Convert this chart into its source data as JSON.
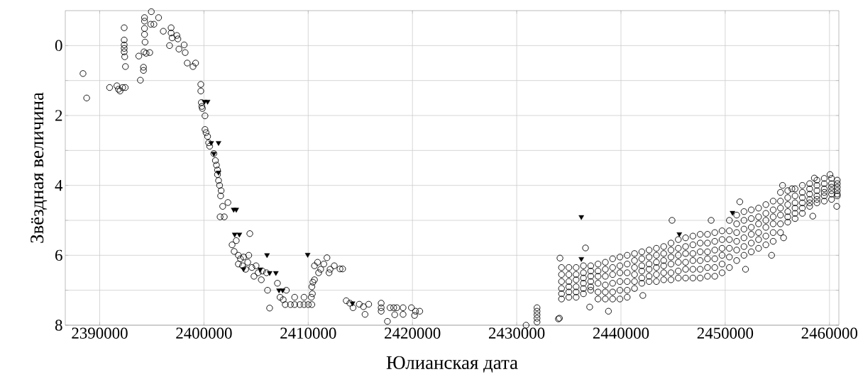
{
  "chart_data": {
    "type": "scatter",
    "xlabel": "Юлианская дата",
    "ylabel": "Звёздная величина",
    "xlim": [
      2386700,
      2460900
    ],
    "ylim": [
      8,
      -1
    ],
    "xticks": [
      2390000,
      2400000,
      2410000,
      2420000,
      2430000,
      2440000,
      2450000,
      2460000
    ],
    "yticks": [
      0,
      {
        "value": 1,
        "label": null
      },
      2,
      {
        "value": 3,
        "label": null
      },
      4,
      {
        "value": 5,
        "label": null
      },
      6,
      {
        "value": 7,
        "label": null
      },
      8
    ],
    "grid": true,
    "series": [
      {
        "marker": "circle",
        "color": "#000000",
        "x": [
          2388400,
          2388750,
          2390950,
          2391650,
          2391800,
          2391950,
          2392200,
          2392450,
          2392350,
          2392350,
          2392350,
          2392350,
          2392350,
          2392400,
          2392470,
          2393900,
          2393750,
          2394200,
          2394200,
          2394300,
          2394300,
          2394300,
          2394300,
          2394350,
          2394250,
          2394450,
          2394800,
          2394950,
          2394900,
          2395200,
          2395650,
          2396100,
          2396700,
          2396850,
          2396850,
          2396950,
          2397400,
          2397500,
          2397600,
          2398100,
          2398200,
          2398400,
          2398950,
          2399200,
          2399700,
          2399700,
          2399750,
          2399800,
          2399850,
          2400100,
          2400100,
          2400200,
          2400350,
          2400450,
          2400550,
          2400950,
          2401100,
          2401200,
          2401300,
          2401300,
          2401400,
          2401500,
          2401650,
          2401600,
          2401550,
          2401950,
          2401800,
          2402300,
          2403100,
          2402700,
          2402900,
          2403300,
          2403500,
          2403800,
          2404300,
          2404200,
          2403300,
          2403700,
          2404400,
          2404000,
          2404600,
          2405000,
          2405200,
          2405600,
          2406000,
          2404800,
          2405500,
          2406100,
          2406300,
          2407050,
          2407300,
          2407600,
          2407900,
          2407800,
          2408300,
          2408700,
          2409200,
          2409600,
          2410000,
          2410350,
          2408700,
          2409600,
          2410300,
          2410350,
          2410450,
          2410600,
          2410400,
          2410600,
          2410900,
          2411200,
          2411500,
          2411800,
          2412100,
          2412500,
          2411000,
          2412000,
          2413050,
          2413300,
          2413650,
          2414000,
          2414900,
          2415300,
          2415800,
          2415450,
          2414300,
          2417000,
          2417000,
          2417000,
          2417600,
          2417850,
          2418200,
          2418500,
          2418300,
          2419100,
          2419100,
          2419900,
          2420300,
          2420700,
          2420200,
          2430900,
          2431950,
          2431950,
          2431950,
          2431950,
          2431950,
          2434150,
          2434100,
          2434000,
          2438800,
          2437000,
          2442100,
          2436600,
          2444900,
          2448650,
          2451400,
          2451950,
          2454450,
          2455600,
          2458400,
          2460700,
          2455500,
          2456400,
          2458550,
          2460050,
          2434300,
          2434300,
          2434300,
          2434300,
          2434300,
          2434300,
          2435000,
          2435000,
          2435000,
          2435000,
          2435000,
          2435000,
          2435700,
          2435700,
          2435700,
          2435700,
          2435700,
          2435700,
          2436400,
          2436400,
          2436400,
          2436400,
          2436400,
          2436400,
          2437100,
          2437100,
          2437100,
          2437100,
          2437100,
          2437100,
          2437800,
          2437800,
          2437800,
          2437800,
          2437800,
          2437800,
          2438500,
          2438500,
          2438500,
          2438500,
          2438500,
          2438500,
          2439200,
          2439200,
          2439200,
          2439200,
          2439200,
          2439200,
          2439900,
          2439900,
          2439900,
          2439900,
          2439900,
          2439900,
          2440600,
          2440600,
          2440600,
          2440600,
          2440600,
          2440600,
          2441300,
          2441300,
          2441300,
          2441300,
          2441300,
          2441300,
          2442000,
          2442000,
          2442000,
          2442000,
          2442000,
          2442000,
          2442700,
          2442700,
          2442700,
          2442700,
          2442700,
          2442700,
          2443400,
          2443400,
          2443400,
          2443400,
          2443400,
          2443400,
          2444100,
          2444100,
          2444100,
          2444100,
          2444100,
          2444100,
          2444800,
          2444800,
          2444800,
          2444800,
          2444800,
          2444800,
          2445500,
          2445500,
          2445500,
          2445500,
          2445500,
          2445500,
          2446200,
          2446200,
          2446200,
          2446200,
          2446200,
          2446200,
          2446900,
          2446900,
          2446900,
          2446900,
          2446900,
          2446900,
          2447600,
          2447600,
          2447600,
          2447600,
          2447600,
          2447600,
          2448300,
          2448300,
          2448300,
          2448300,
          2448300,
          2448300,
          2449000,
          2449000,
          2449000,
          2449000,
          2449000,
          2449000,
          2449700,
          2449700,
          2449700,
          2449700,
          2449700,
          2449700,
          2450400,
          2450400,
          2450400,
          2450400,
          2450400,
          2450400,
          2451100,
          2451100,
          2451100,
          2451100,
          2451100,
          2451100,
          2451800,
          2451800,
          2451800,
          2451800,
          2451800,
          2451800,
          2452500,
          2452500,
          2452500,
          2452500,
          2452500,
          2452500,
          2453200,
          2453200,
          2453200,
          2453200,
          2453200,
          2453200,
          2453900,
          2453900,
          2453900,
          2453900,
          2453900,
          2453900,
          2454600,
          2454600,
          2454600,
          2454600,
          2454600,
          2454600,
          2455300,
          2455300,
          2455300,
          2455300,
          2455300,
          2455300,
          2456000,
          2456000,
          2456000,
          2456000,
          2456000,
          2456000,
          2456700,
          2456700,
          2456700,
          2456700,
          2456700,
          2456700,
          2457400,
          2457400,
          2457400,
          2457400,
          2457400,
          2457400,
          2458100,
          2458100,
          2458100,
          2458100,
          2458100,
          2458100,
          2458800,
          2458800,
          2458800,
          2458800,
          2458800,
          2458800,
          2459500,
          2459500,
          2459500,
          2459500,
          2459500,
          2459500,
          2460200,
          2460200,
          2460200,
          2460200,
          2460200,
          2460200,
          2460750,
          2460750,
          2460750,
          2460750,
          2460750,
          2460750
        ],
        "values": [
          0.8,
          1.5,
          1.2,
          1.15,
          1.25,
          1.3,
          1.2,
          1.2,
          -0.51,
          -0.16,
          -0.02,
          0.08,
          0.18,
          0.32,
          0.6,
          0.99,
          0.3,
          0.62,
          0.71,
          -0.8,
          -0.7,
          -0.49,
          -0.32,
          -0.1,
          0.18,
          0.22,
          0.2,
          -0.97,
          -0.61,
          -0.61,
          -0.8,
          -0.41,
          0.0,
          -0.51,
          -0.36,
          -0.22,
          -0.29,
          -0.19,
          0.1,
          -0.02,
          0.2,
          0.5,
          0.6,
          0.5,
          1.11,
          1.3,
          1.63,
          1.74,
          1.8,
          2.01,
          2.4,
          2.49,
          2.6,
          2.78,
          2.88,
          3.09,
          3.29,
          3.42,
          3.56,
          3.69,
          3.86,
          4.0,
          4.15,
          4.3,
          4.9,
          4.9,
          4.6,
          4.49,
          5.58,
          5.7,
          5.89,
          6.0,
          6.1,
          6.05,
          6.0,
          6.2,
          6.25,
          6.3,
          5.38,
          6.4,
          6.35,
          6.3,
          6.5,
          6.45,
          6.5,
          6.6,
          6.7,
          7.0,
          7.51,
          6.8,
          7.2,
          7.27,
          7.0,
          7.41,
          7.41,
          7.41,
          7.41,
          7.41,
          7.41,
          7.41,
          7.2,
          7.2,
          7.2,
          6.9,
          6.77,
          6.7,
          7.1,
          6.3,
          6.2,
          6.4,
          6.25,
          6.07,
          6.4,
          6.3,
          6.5,
          6.5,
          6.39,
          6.39,
          7.3,
          7.37,
          7.4,
          7.47,
          7.4,
          7.69,
          7.5,
          7.37,
          7.5,
          7.6,
          7.89,
          7.5,
          7.5,
          7.5,
          7.7,
          7.5,
          7.69,
          7.5,
          7.6,
          7.6,
          7.72,
          8.0,
          7.5,
          7.6,
          7.7,
          7.8,
          7.91,
          6.08,
          7.8,
          7.82,
          7.6,
          7.48,
          7.15,
          5.79,
          5.0,
          5.0,
          4.47,
          6.4,
          6.0,
          5.5,
          4.88,
          4.6,
          4.0,
          4.1,
          3.79,
          3.69,
          6.35,
          6.55,
          6.75,
          6.95,
          7.1,
          7.25,
          6.35,
          6.55,
          6.75,
          6.9,
          7.05,
          7.2,
          6.35,
          6.55,
          6.7,
          6.9,
          7.05,
          7.2,
          6.3,
          6.5,
          6.65,
          6.8,
          6.95,
          7.1,
          6.3,
          6.45,
          6.6,
          6.75,
          6.9,
          7.0,
          6.25,
          6.45,
          6.6,
          6.8,
          7.05,
          7.25,
          6.2,
          6.4,
          6.6,
          6.85,
          7.05,
          7.25,
          6.1,
          6.35,
          6.55,
          6.8,
          7.05,
          7.25,
          6.05,
          6.3,
          6.5,
          6.75,
          7.0,
          7.25,
          6.0,
          6.25,
          6.5,
          6.75,
          7.0,
          7.2,
          5.95,
          6.15,
          6.35,
          6.55,
          6.75,
          6.95,
          5.9,
          6.1,
          6.3,
          6.45,
          6.65,
          6.8,
          5.85,
          6.05,
          6.25,
          6.4,
          6.6,
          6.75,
          5.8,
          6.0,
          6.2,
          6.35,
          6.55,
          6.75,
          5.75,
          5.95,
          6.15,
          6.3,
          6.5,
          6.7,
          5.65,
          5.85,
          6.05,
          6.25,
          6.5,
          6.7,
          5.55,
          5.8,
          6.0,
          6.2,
          6.45,
          6.65,
          5.5,
          5.75,
          5.95,
          6.2,
          6.4,
          6.65,
          5.45,
          5.7,
          5.95,
          6.15,
          6.4,
          6.65,
          5.4,
          5.65,
          5.9,
          6.15,
          6.4,
          6.65,
          5.4,
          5.65,
          5.9,
          6.1,
          6.35,
          6.6,
          5.35,
          5.6,
          5.85,
          6.1,
          6.35,
          6.6,
          5.3,
          5.55,
          5.8,
          6.0,
          6.25,
          6.5,
          5.0,
          5.3,
          5.55,
          5.8,
          6.05,
          6.35,
          4.85,
          5.1,
          5.35,
          5.6,
          5.85,
          6.15,
          4.75,
          5.0,
          5.25,
          5.5,
          5.75,
          6.0,
          4.7,
          4.95,
          5.2,
          5.4,
          5.65,
          5.9,
          4.65,
          4.9,
          5.1,
          5.35,
          5.55,
          5.8,
          4.55,
          4.8,
          5.0,
          5.2,
          5.45,
          5.7,
          4.45,
          4.7,
          4.9,
          5.1,
          5.35,
          5.6,
          4.2,
          4.45,
          4.65,
          4.85,
          5.1,
          5.35,
          4.15,
          4.35,
          4.55,
          4.75,
          4.9,
          5.05,
          4.1,
          4.3,
          4.5,
          4.65,
          4.8,
          4.95,
          4.0,
          4.2,
          4.35,
          4.5,
          4.65,
          4.8,
          3.95,
          4.1,
          4.25,
          4.4,
          4.5,
          4.6,
          3.85,
          4.0,
          4.15,
          4.3,
          4.4,
          4.5,
          3.8,
          3.95,
          4.1,
          4.2,
          4.3,
          4.45,
          3.8,
          3.95,
          4.05,
          4.15,
          4.25,
          4.4,
          3.85,
          3.95,
          4.05,
          4.15,
          4.25,
          4.3
        ]
      },
      {
        "marker": "triangle",
        "color": "#000000",
        "x": [
          2400050,
          2400350,
          2400700,
          2401400,
          2400950,
          2401400,
          2402850,
          2403100,
          2402950,
          2403400,
          2403800,
          2406050,
          2409950,
          2405400,
          2406300,
          2406900,
          2407200,
          2407550,
          2414250,
          2436200,
          2436200,
          2445600,
          2450700
        ],
        "values": [
          1.6,
          1.6,
          2.78,
          2.78,
          3.09,
          3.63,
          4.69,
          4.69,
          5.4,
          5.4,
          6.39,
          5.99,
          5.98,
          6.4,
          6.5,
          6.5,
          7.0,
          7.0,
          7.37,
          4.9,
          6.1,
          5.39,
          4.78
        ]
      }
    ]
  }
}
